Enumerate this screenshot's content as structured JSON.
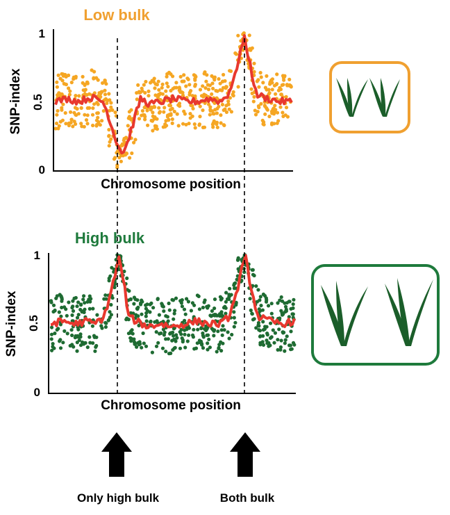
{
  "chart_data": [
    {
      "type": "scatter",
      "title": "Low bulk",
      "title_color": "#f0a030",
      "xlabel": "Chromosome position",
      "ylabel": "SNP-index",
      "yticks": [
        "0",
        "0.5",
        "1"
      ],
      "ylim": [
        0,
        1
      ],
      "xlim": [
        0,
        100
      ],
      "point_color": "#f5a623",
      "line_color": "#e8382e",
      "series": [
        {
          "values_x": [
            0,
            5,
            10,
            15,
            20,
            22,
            25,
            28,
            30,
            33,
            36,
            40,
            45,
            50,
            55,
            60,
            65,
            70,
            73,
            76,
            78,
            80,
            82,
            85,
            90,
            95,
            100
          ],
          "values_y": [
            0.5,
            0.52,
            0.5,
            0.53,
            0.5,
            0.42,
            0.25,
            0.13,
            0.18,
            0.35,
            0.52,
            0.48,
            0.5,
            0.52,
            0.5,
            0.5,
            0.52,
            0.5,
            0.55,
            0.68,
            0.85,
            0.95,
            0.8,
            0.55,
            0.52,
            0.5,
            0.5
          ]
        }
      ],
      "dashed_lines_x": [
        28,
        80
      ]
    },
    {
      "type": "scatter",
      "title": "High bulk",
      "title_color": "#1e7a3c",
      "xlabel": "Chromosome position",
      "ylabel": "SNP-index",
      "yticks": [
        "0",
        "0.5",
        "1"
      ],
      "ylim": [
        0,
        1
      ],
      "xlim": [
        0,
        100
      ],
      "point_color": "#1e6b32",
      "line_color": "#e8382e",
      "series": [
        {
          "values_x": [
            0,
            5,
            10,
            15,
            18,
            22,
            25,
            28,
            30,
            32,
            35,
            40,
            45,
            50,
            55,
            60,
            65,
            70,
            73,
            76,
            78,
            80,
            82,
            85,
            90,
            95,
            100
          ],
          "values_y": [
            0.5,
            0.52,
            0.5,
            0.52,
            0.5,
            0.55,
            0.75,
            0.97,
            0.8,
            0.55,
            0.52,
            0.48,
            0.5,
            0.48,
            0.5,
            0.52,
            0.5,
            0.5,
            0.55,
            0.7,
            0.87,
            0.97,
            0.78,
            0.55,
            0.52,
            0.5,
            0.52
          ]
        }
      ],
      "dashed_lines_x": [
        28,
        80
      ]
    }
  ],
  "annotations": {
    "arrow_left_label": "Only high bulk",
    "arrow_right_label": "Both bulk"
  },
  "icons": {
    "low_bulk": "small-plants-icon",
    "high_bulk": "large-plants-icon",
    "low_border_color": "#f0a030",
    "high_border_color": "#1e7a3c",
    "plant_color": "#1b5e2a"
  }
}
